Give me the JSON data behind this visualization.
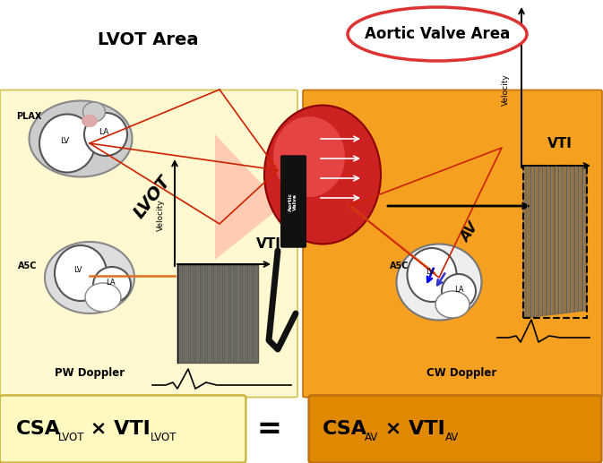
{
  "bg_left_color": "#FFF8D0",
  "bg_right_color": "#F5A020",
  "title_left": "LVOT Area",
  "title_right": "Aortic Valve Area",
  "label_plax": "PLAX",
  "label_a5c_left": "A5C",
  "label_a5c_right": "A5C",
  "label_lv": "LV",
  "label_la": "LA",
  "label_lvot": "LVOT",
  "label_av": "AV",
  "label_vti": "VTI",
  "label_velocity": "Velocity",
  "label_pw": "PW Doppler",
  "label_cw": "CW Doppler",
  "red_line_color": "#CC2200",
  "orange_beam_color": "#E07020",
  "oval_border": "#DD3333",
  "box_left_color": "#FFF8C0",
  "box_right_color": "#E08800",
  "fig_width": 6.73,
  "fig_height": 5.17,
  "dpi": 100
}
